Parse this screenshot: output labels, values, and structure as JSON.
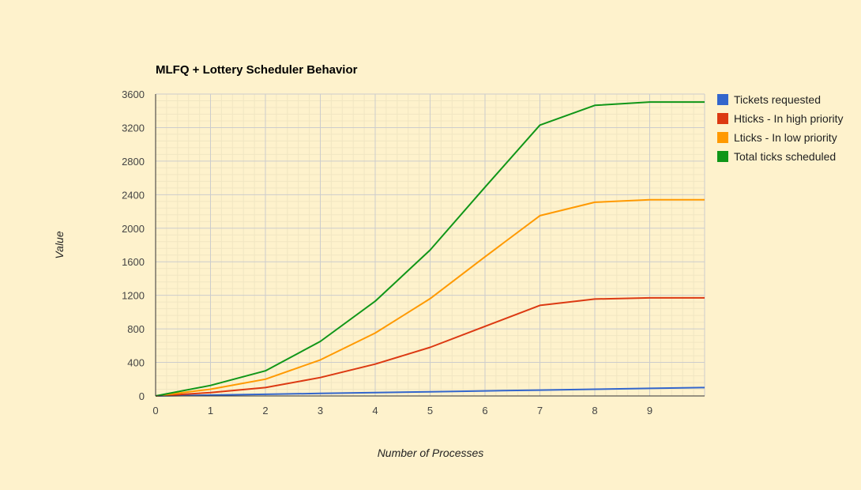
{
  "chart_data": {
    "type": "line",
    "title": "MLFQ + Lottery Scheduler Behavior",
    "xlabel": "Number of Processes",
    "ylabel": "Value",
    "xlim": [
      0,
      10
    ],
    "ylim": [
      0,
      3600
    ],
    "x_ticks": [
      "0",
      "1",
      "2",
      "3",
      "4",
      "5",
      "6",
      "7",
      "8",
      "9"
    ],
    "y_ticks": [
      "0",
      "400",
      "800",
      "1200",
      "1600",
      "2000",
      "2400",
      "2800",
      "3200",
      "3600"
    ],
    "grid": true,
    "minor_grid": true,
    "legend_position": "right",
    "x": [
      0,
      1,
      2,
      3,
      4,
      5,
      6,
      7,
      8,
      9,
      10
    ],
    "series": [
      {
        "name": "Tickets requested",
        "color": "#3366cc",
        "values": [
          0,
          10,
          20,
          30,
          40,
          50,
          60,
          70,
          80,
          90,
          100
        ]
      },
      {
        "name": "Hticks - In high priority",
        "color": "#dc3912",
        "values": [
          0,
          40,
          100,
          220,
          380,
          580,
          830,
          1080,
          1155,
          1170,
          1170
        ]
      },
      {
        "name": "Lticks - In low priority",
        "color": "#ff9900",
        "values": [
          0,
          80,
          200,
          430,
          750,
          1160,
          1660,
          2150,
          2310,
          2340,
          2340
        ]
      },
      {
        "name": "Total ticks scheduled",
        "color": "#109618",
        "values": [
          0,
          125,
          300,
          650,
          1130,
          1740,
          2490,
          3230,
          3465,
          3505,
          3505
        ]
      }
    ]
  }
}
